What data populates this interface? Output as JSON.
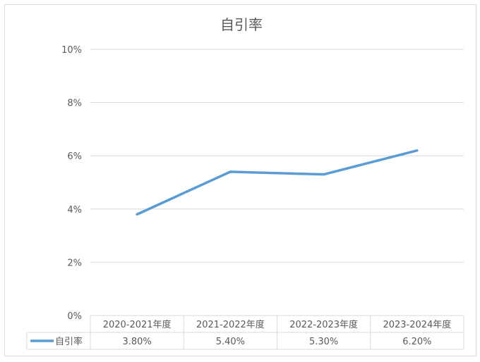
{
  "chart_data": {
    "type": "line",
    "title": "自引率",
    "categories": [
      "2020-2021年度",
      "2021-2022年度",
      "2022-2023年度",
      "2023-2024年度"
    ],
    "series": [
      {
        "name": "自引率",
        "values": [
          3.8,
          5.4,
          5.3,
          6.2
        ],
        "value_labels": [
          "3.80%",
          "5.40%",
          "5.30%",
          "6.20%"
        ],
        "color": "#5b9bd5"
      }
    ],
    "y_ticks": [
      "0%",
      "2%",
      "4%",
      "6%",
      "8%",
      "10%"
    ],
    "ylim": [
      0,
      10
    ],
    "grid": true,
    "legend": "data-table",
    "colors": {
      "gridline": "#d9d9d9",
      "text": "#595959",
      "line": "#5b9bd5"
    }
  }
}
